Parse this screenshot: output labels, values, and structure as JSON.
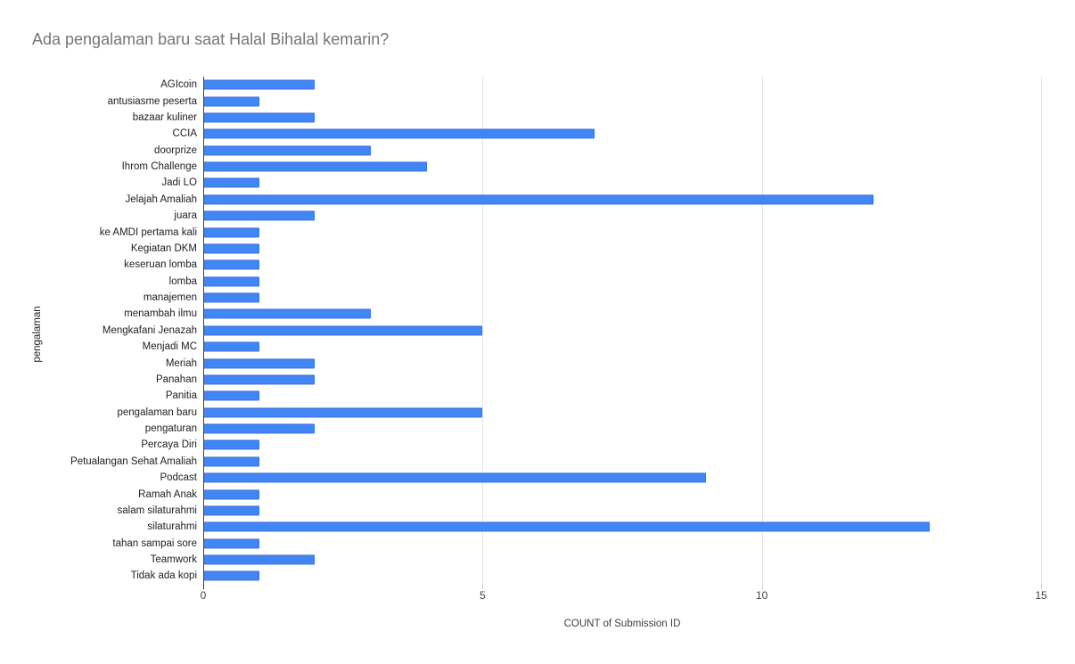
{
  "page": {
    "background": "#ffffff"
  },
  "chart_data": {
    "type": "bar",
    "orientation": "horizontal",
    "title": "Ada pengalaman baru saat Halal Bihalal kemarin?",
    "xlabel": "COUNT of Submission ID",
    "ylabel": "pengalaman",
    "categories": [
      "AGIcoin",
      "antusiasme peserta",
      "bazaar kuliner",
      "CCIA",
      "doorprize",
      "Ihrom Challenge",
      "Jadi LO",
      "Jelajah Amaliah",
      "juara",
      "ke AMDI pertama kali",
      "Kegiatan DKM",
      "keseruan lomba",
      "lomba",
      "manajemen",
      "menambah ilmu",
      "Mengkafani Jenazah",
      "Menjadi MC",
      "Meriah",
      "Panahan",
      "Panitia",
      "pengalaman baru",
      "pengaturan",
      "Percaya Diri",
      "Petualangan Sehat Amaliah",
      "Podcast",
      "Ramah Anak",
      "salam silaturahmi",
      "silaturahmi",
      "tahan sampai sore",
      "Teamwork",
      "Tidak ada kopi"
    ],
    "values": [
      2,
      1,
      2,
      7,
      3,
      4,
      1,
      12,
      2,
      1,
      1,
      1,
      1,
      1,
      3,
      5,
      1,
      2,
      2,
      1,
      5,
      2,
      1,
      1,
      9,
      1,
      1,
      13,
      1,
      2,
      1
    ],
    "xlim": [
      0,
      15
    ],
    "xticks": [
      0,
      5,
      10,
      15
    ],
    "legend_position": "none",
    "grid": "vertical gridlines at 5, 10, 15",
    "bar_color": "#4285f4",
    "title_color": "#757575",
    "axis_text_color": "#424242",
    "gridline_color": "#e3e3e3",
    "baseline_color": "#424242"
  }
}
